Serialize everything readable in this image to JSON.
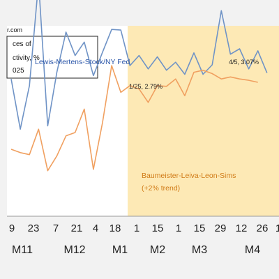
{
  "source_fragment": "r.com",
  "title_lines": [
    "ces of",
    "ctivity, %",
    "025"
  ],
  "chart_data": {
    "type": "line",
    "x_tick_labels": [
      "9",
      "23",
      "7",
      "21",
      "4",
      "18",
      "1",
      "15",
      "1",
      "15",
      "29",
      "12",
      "26",
      "1"
    ],
    "month_labels": [
      "M11",
      "M12",
      "M1",
      "M2",
      "M3",
      "M4"
    ],
    "series": [
      {
        "name": "Lewis-Mertens-Stock/NY Fed",
        "color": "#6f93c6",
        "values": [
          2.05,
          1.3,
          1.95,
          3.5,
          1.35,
          2.15,
          2.75,
          2.4,
          2.6,
          2.1,
          2.45,
          2.79,
          2.78,
          2.25,
          2.4,
          2.2,
          2.38,
          2.18,
          2.3,
          2.12,
          2.44,
          2.12,
          2.26,
          3.07,
          2.42,
          2.5,
          2.2,
          2.47,
          2.14
        ]
      },
      {
        "name": "Baumeister-Leiva-Leon-Sims",
        "name_note": "(+2% trend)",
        "color": "#f0a060",
        "values": [
          1.0,
          0.95,
          0.92,
          1.3,
          0.68,
          0.9,
          1.2,
          1.25,
          1.6,
          0.7,
          1.4,
          2.25,
          1.85,
          1.95,
          1.9,
          1.7,
          1.95,
          1.94,
          2.05,
          1.8,
          2.15,
          2.18,
          2.13,
          2.05,
          2.08,
          2.05,
          2.03,
          2.0
        ]
      }
    ],
    "annotations": [
      "1/25, 2.79%",
      "4/5, 3.07%"
    ],
    "shaded_region_color": "#fde9b5"
  }
}
